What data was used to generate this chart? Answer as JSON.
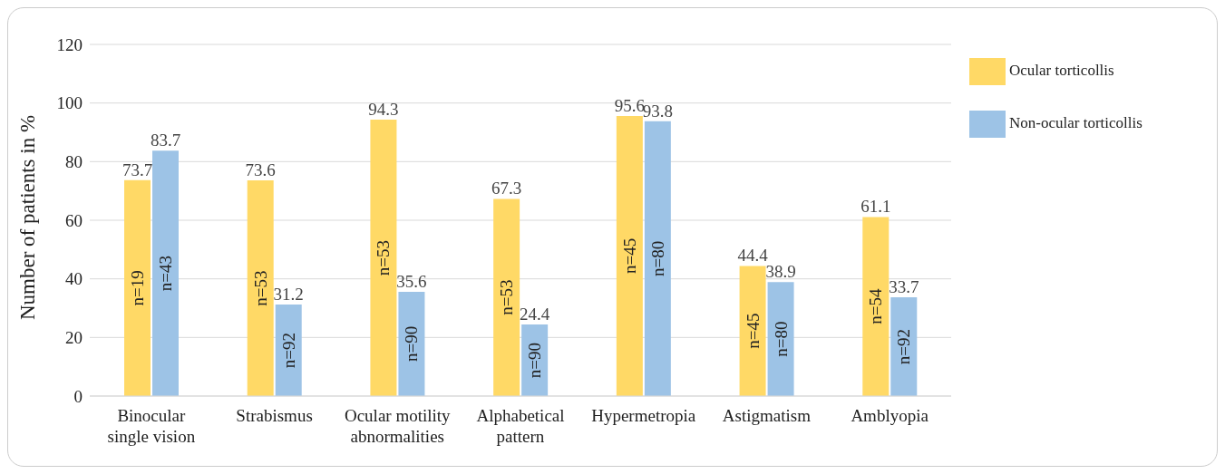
{
  "chart_data": {
    "type": "bar",
    "ylabel": "Number of patients in %",
    "categories": [
      "Binocular single vision",
      "Strabismus",
      "Ocular motility abnormalities",
      "Alphabetical pattern",
      "Hypermetropia",
      "Astigmatism",
      "Amblyopia"
    ],
    "series": [
      {
        "name": "Ocular torticollis",
        "color": "#ffd966",
        "values": [
          73.7,
          73.6,
          94.3,
          67.3,
          95.6,
          44.4,
          61.1
        ]
      },
      {
        "name": "Non-ocular torticollis",
        "color": "#9dc3e6",
        "values": [
          83.7,
          31.2,
          35.6,
          24.4,
          93.8,
          38.9,
          33.7
        ]
      }
    ],
    "annotations": [
      "n=19",
      "n=43",
      "n=53",
      "n=92",
      "n=53",
      "n=90",
      "n=53",
      "n=90",
      "n=45",
      "n=80",
      "n=45",
      "n=80",
      "n=54",
      "n=92"
    ],
    "ylim": [
      0,
      120
    ],
    "yticks": [
      0,
      20,
      40,
      60,
      80,
      100,
      120
    ],
    "grid": "y",
    "legend": "right",
    "data_labels": true
  }
}
